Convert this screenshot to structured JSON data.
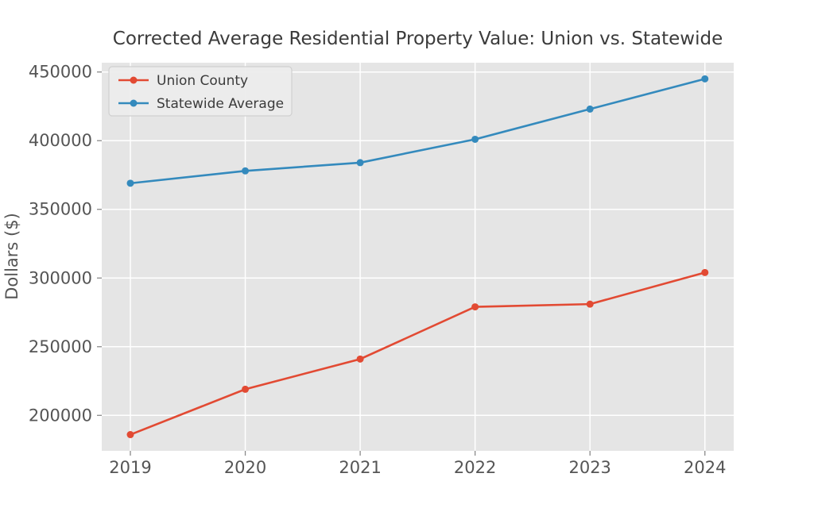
{
  "figure": {
    "title": "Corrected Average Residential Property Value: Union vs. Statewide",
    "ylabel": "Dollars ($)"
  },
  "legend": {
    "position": "upper left",
    "items": [
      {
        "label": "Union County",
        "color": "#e24a33"
      },
      {
        "label": "Statewide Average",
        "color": "#348abd"
      }
    ]
  },
  "chart_data": {
    "type": "line",
    "title": "Corrected Average Residential Property Value: Union vs. Statewide",
    "xlabel": "",
    "ylabel": "Dollars ($)",
    "x": [
      2019,
      2020,
      2021,
      2022,
      2023,
      2024
    ],
    "xtick_labels": [
      "2019",
      "2020",
      "2021",
      "2022",
      "2023",
      "2024"
    ],
    "series": [
      {
        "name": "Union County",
        "color": "#e24a33",
        "values": [
          186000,
          219000,
          241000,
          279000,
          281000,
          304000
        ]
      },
      {
        "name": "Statewide Average",
        "color": "#348abd",
        "values": [
          369000,
          378000,
          384000,
          401000,
          423000,
          445000
        ]
      }
    ],
    "yticks": [
      200000,
      250000,
      300000,
      350000,
      400000,
      450000
    ],
    "ytick_labels": [
      "200000",
      "250000",
      "300000",
      "350000",
      "400000",
      "450000"
    ],
    "ylim": [
      174000,
      457000
    ],
    "xlim": [
      2018.75,
      2024.25
    ],
    "grid": true,
    "legend_position": "upper left",
    "marker": "circle",
    "colors": {
      "plot_bg": "#e5e5e5",
      "figure_bg": "#ffffff",
      "grid": "#ffffff",
      "tick_label": "#555555",
      "title": "#3b3b3b",
      "legend_bg": "#ececec",
      "legend_border": "#d0d0d0"
    }
  }
}
